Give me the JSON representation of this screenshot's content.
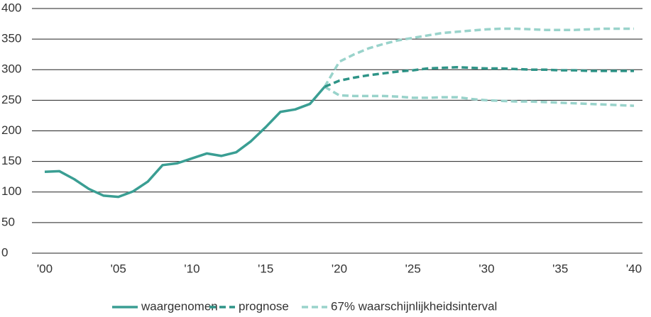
{
  "chart_data": {
    "type": "line",
    "xlim": [
      2000,
      2040
    ],
    "xticks": [
      {
        "value": 2000,
        "label": "'00"
      },
      {
        "value": 2005,
        "label": "'05"
      },
      {
        "value": 2010,
        "label": "'10"
      },
      {
        "value": 2015,
        "label": "'15"
      },
      {
        "value": 2020,
        "label": "'20"
      },
      {
        "value": 2025,
        "label": "'25"
      },
      {
        "value": 2030,
        "label": "'30"
      },
      {
        "value": 2035,
        "label": "'35"
      },
      {
        "value": 2040,
        "label": "'40"
      }
    ],
    "ylim": [
      0,
      400
    ],
    "yticks": [
      0,
      50,
      100,
      150,
      200,
      250,
      300,
      350,
      400
    ],
    "grid": true,
    "legend": "bottom",
    "series": [
      {
        "name": "waargenomen",
        "color": "#3a9e93",
        "dash": "solid",
        "x": [
          2000,
          2001,
          2002,
          2003,
          2004,
          2005,
          2006,
          2007,
          2008,
          2009,
          2010,
          2011,
          2012,
          2013,
          2014,
          2015,
          2016,
          2017,
          2018,
          2019
        ],
        "values": [
          133,
          134,
          121,
          105,
          94,
          92,
          101,
          117,
          144,
          147,
          155,
          163,
          159,
          165,
          183,
          206,
          231,
          235,
          244,
          272
        ]
      },
      {
        "name": "prognose",
        "color": "#2e9487",
        "dash": "dashed",
        "x": [
          2019,
          2020,
          2021,
          2022,
          2023,
          2024,
          2025,
          2026,
          2027,
          2028,
          2029,
          2030,
          2031,
          2032,
          2033,
          2034,
          2035,
          2036,
          2037,
          2038,
          2039,
          2040
        ],
        "values": [
          272,
          282,
          287,
          291,
          294,
          297,
          299,
          302,
          303,
          304,
          303,
          302,
          302,
          301,
          300,
          300,
          299,
          299,
          298,
          298,
          298,
          298
        ]
      },
      {
        "name": "67% waarschijnlijkheidsinterval",
        "color": "#99d3cb",
        "dash": "dashed",
        "x": [
          2019,
          2020,
          2021,
          2022,
          2023,
          2024,
          2025,
          2026,
          2027,
          2028,
          2029,
          2030,
          2031,
          2032,
          2033,
          2034,
          2035,
          2036,
          2037,
          2038,
          2039,
          2040
        ],
        "values": [
          272,
          313,
          325,
          335,
          342,
          348,
          352,
          356,
          360,
          362,
          364,
          366,
          367,
          367,
          366,
          365,
          365,
          365,
          366,
          367,
          367,
          367
        ],
        "values_low": [
          272,
          258,
          257,
          257,
          257,
          256,
          254,
          254,
          255,
          255,
          252,
          250,
          249,
          248,
          248,
          247,
          246,
          245,
          244,
          243,
          242,
          241
        ]
      }
    ]
  }
}
